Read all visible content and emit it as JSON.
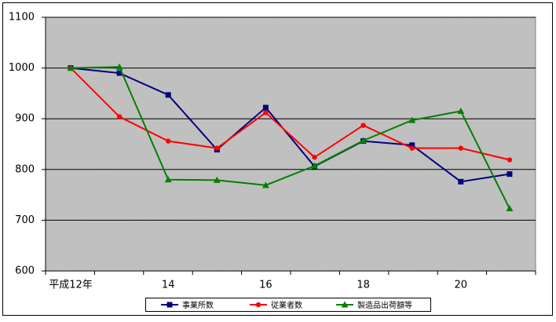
{
  "chart_data": {
    "type": "line",
    "categories": [
      "平成12年",
      null,
      "14",
      null,
      "16",
      null,
      "18",
      null,
      "20",
      null
    ],
    "series": [
      {
        "name": "事業所数",
        "color": "#000080",
        "marker": "square",
        "values": [
          1000,
          990,
          947,
          839,
          922,
          806,
          856,
          848,
          776,
          791
        ]
      },
      {
        "name": "従業者数",
        "color": "#ff0000",
        "marker": "circle",
        "values": [
          1000,
          904,
          856,
          842,
          912,
          824,
          887,
          842,
          842,
          819
        ]
      },
      {
        "name": "製造品出荷額等",
        "color": "#008000",
        "marker": "triangle",
        "values": [
          1000,
          1002,
          780,
          779,
          769,
          807,
          857,
          897,
          915,
          723
        ]
      }
    ],
    "ylim": [
      600,
      1100
    ],
    "yticks": [
      600,
      700,
      800,
      900,
      1000,
      1100
    ],
    "grid": true,
    "legend": "bottom"
  }
}
